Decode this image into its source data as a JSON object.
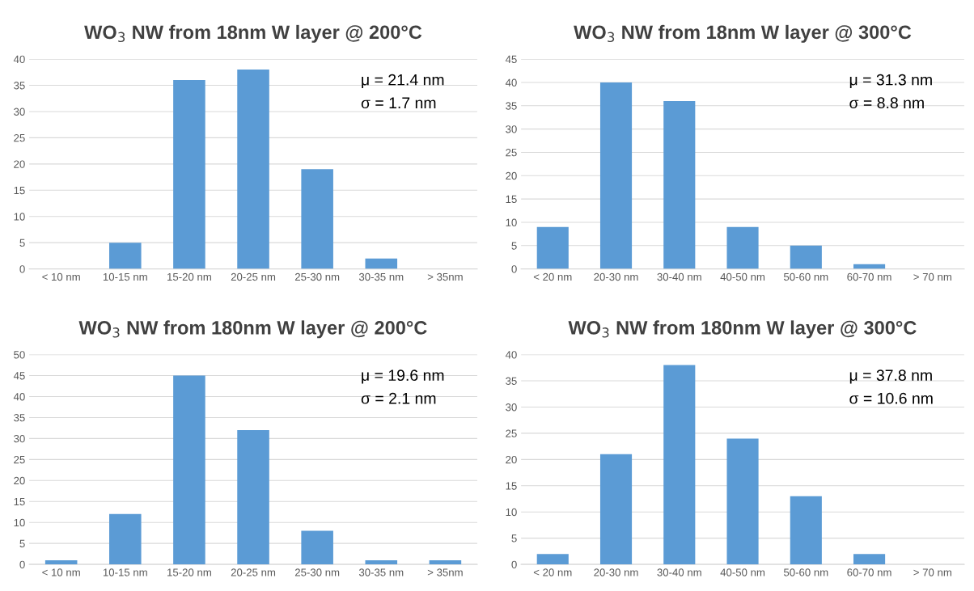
{
  "chart_data": [
    {
      "type": "bar",
      "title": "WO$_{3}$ NW from 18nm W layer @ 200°C",
      "categories": [
        "< 10 nm",
        "10-15 nm",
        "15-20 nm",
        "20-25 nm",
        "25-30 nm",
        "30-35 nm",
        "> 35nm"
      ],
      "values": [
        0,
        5,
        36,
        38,
        19,
        2,
        0
      ],
      "color": "#5b9bd5",
      "ylim": [
        0,
        40
      ],
      "yticks": [
        0,
        5,
        10,
        15,
        20,
        25,
        30,
        35,
        40
      ],
      "grid": "y",
      "annotations": [
        "μ = 21.4 nm",
        "σ = 1.7 nm"
      ]
    },
    {
      "type": "bar",
      "title": "WO$_{3}$ NW from 18nm W layer @ 300°C",
      "categories": [
        "< 20 nm",
        "20-30 nm",
        "30-40 nm",
        "40-50 nm",
        "50-60 nm",
        "60-70 nm",
        "> 70 nm"
      ],
      "values": [
        9,
        40,
        36,
        9,
        5,
        1,
        0
      ],
      "color": "#5b9bd5",
      "ylim": [
        0,
        45
      ],
      "yticks": [
        0,
        5,
        10,
        15,
        20,
        25,
        30,
        35,
        40,
        45
      ],
      "grid": "y",
      "annotations": [
        "μ = 31.3 nm",
        "σ = 8.8 nm"
      ]
    },
    {
      "type": "bar",
      "title": "WO$_{3}$ NW from 180nm W layer @ 200°C",
      "categories": [
        "< 10 nm",
        "10-15 nm",
        "15-20 nm",
        "20-25 nm",
        "25-30 nm",
        "30-35 nm",
        "> 35nm"
      ],
      "values": [
        1,
        12,
        45,
        32,
        8,
        1,
        1
      ],
      "color": "#5b9bd5",
      "ylim": [
        0,
        50
      ],
      "yticks": [
        0,
        5,
        10,
        15,
        20,
        25,
        30,
        35,
        40,
        45,
        50
      ],
      "grid": "y",
      "annotations": [
        "μ = 19.6 nm",
        "σ = 2.1 nm"
      ]
    },
    {
      "type": "bar",
      "title": "WO$_{3}$ NW from 180nm W layer @ 300°C",
      "categories": [
        "< 20 nm",
        "20-30 nm",
        "30-40 nm",
        "40-50 nm",
        "50-60 nm",
        "60-70 nm",
        "> 70 nm"
      ],
      "values": [
        2,
        21,
        38,
        24,
        13,
        2,
        0
      ],
      "color": "#5b9bd5",
      "ylim": [
        0,
        40
      ],
      "yticks": [
        0,
        5,
        10,
        15,
        20,
        25,
        30,
        35,
        40
      ],
      "grid": "y",
      "annotations": [
        "μ = 37.8 nm",
        "σ = 10.6 nm"
      ]
    }
  ]
}
